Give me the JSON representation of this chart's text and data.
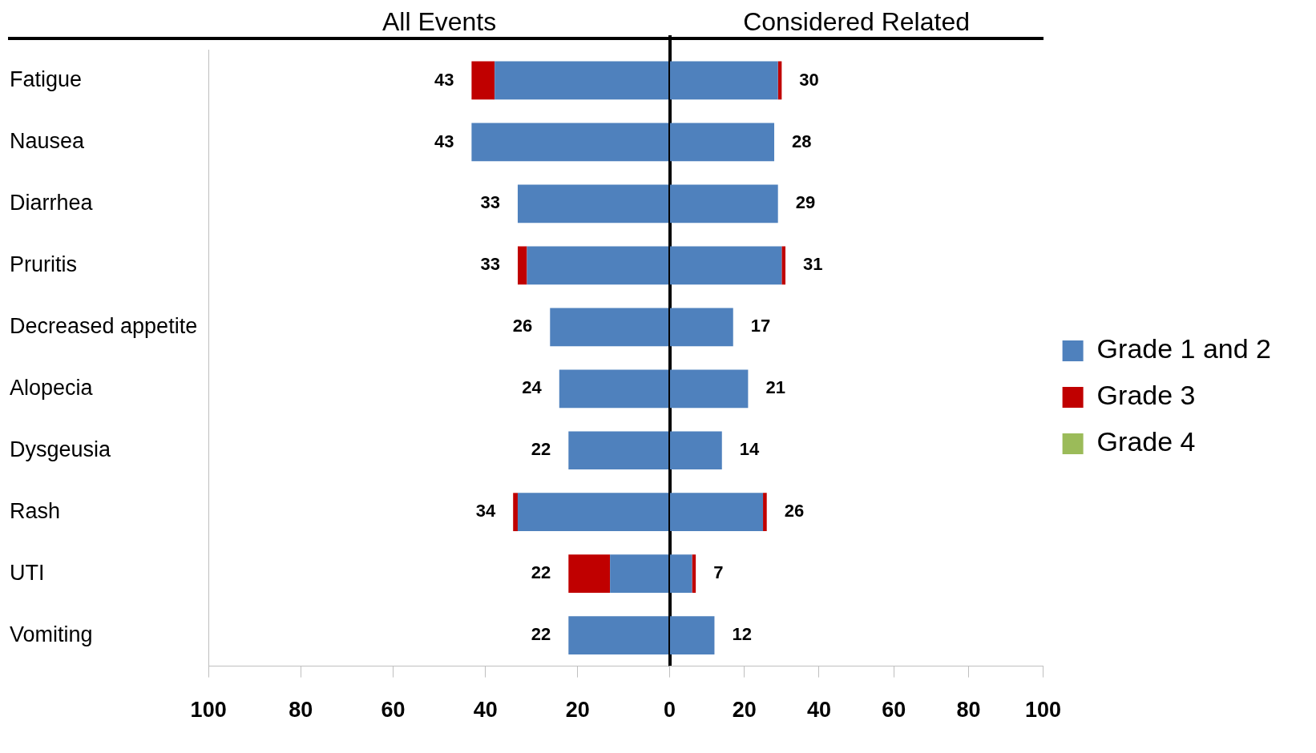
{
  "chart_data": [
    {
      "type": "bar",
      "orientation": "horizontal",
      "stacked": true,
      "annotations": [
        "All Events"
      ],
      "categories": [
        "Fatigue",
        "Nausea",
        "Diarrhea",
        "Pruritis",
        "Decreased appetite",
        "Alopecia",
        "Dysgeusia",
        "Rash",
        "UTI",
        "Vomiting"
      ],
      "series": [
        {
          "color": "#4f81bd",
          "values": [
            38,
            43,
            33,
            31,
            26,
            24,
            22,
            33,
            13,
            22
          ]
        },
        {
          "color": "#c00000",
          "values": [
            5,
            null,
            null,
            2,
            null,
            null,
            null,
            1,
            9,
            null
          ]
        },
        {
          "color": "#9bbb59",
          "values": [
            null,
            null,
            null,
            null,
            null,
            null,
            null,
            null,
            null,
            null
          ]
        }
      ],
      "totals": [
        "43",
        "43",
        "33",
        "33",
        "26",
        "24",
        "22",
        "34",
        "22",
        "22"
      ],
      "xlim": [
        100,
        0
      ],
      "xticks": [
        100,
        80,
        60,
        40,
        20
      ],
      "ref_lines": [
        {
          "axis": "x",
          "value": 0,
          "color": "#000000"
        }
      ],
      "grid": false,
      "legend": false
    },
    {
      "type": "bar",
      "orientation": "horizontal",
      "stacked": true,
      "annotations": [
        "Considered Related"
      ],
      "categories": [
        null,
        null,
        null,
        null,
        null,
        null,
        null,
        null,
        null,
        null
      ],
      "series": [
        {
          "name": "Grade 1 and 2",
          "color": "#4f81bd",
          "values": [
            29,
            28,
            29,
            30,
            17,
            21,
            14,
            25,
            6,
            12
          ]
        },
        {
          "name": "Grade 3",
          "color": "#c00000",
          "values": [
            1,
            null,
            null,
            1,
            null,
            null,
            null,
            1,
            1,
            null
          ]
        },
        {
          "name": "Grade 4",
          "color": "#9bbb59",
          "values": [
            null,
            null,
            null,
            null,
            null,
            null,
            null,
            null,
            null,
            null
          ]
        }
      ],
      "totals": [
        "30",
        "28",
        "29",
        "31",
        "17",
        "21",
        "14",
        "26",
        "7",
        "12"
      ],
      "xlim": [
        0,
        100
      ],
      "xticks": [
        0,
        20,
        40,
        60,
        80,
        100
      ],
      "tick_labels": "x",
      "grid": false,
      "legend": "right"
    }
  ]
}
